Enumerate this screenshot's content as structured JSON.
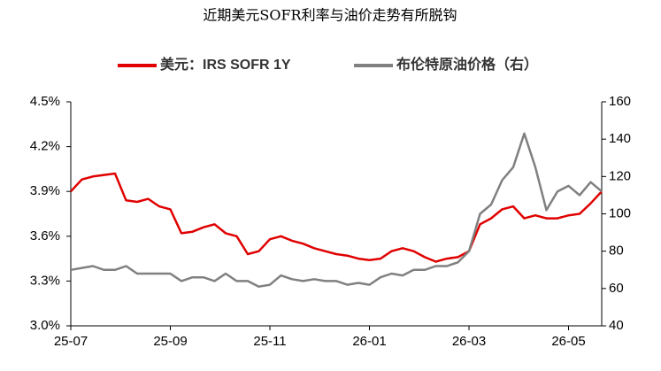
{
  "chart_data": {
    "type": "line",
    "title": "近期美元SOFR利率与油价走势有所脱钩",
    "categories": [
      "25-07",
      null,
      null,
      null,
      null,
      null,
      null,
      null,
      null,
      "25-09",
      null,
      null,
      null,
      null,
      null,
      null,
      null,
      null,
      "25-11",
      null,
      null,
      null,
      null,
      null,
      null,
      null,
      null,
      "26-01",
      null,
      null,
      null,
      null,
      null,
      null,
      null,
      null,
      "26-03",
      null,
      null,
      null,
      null,
      null,
      null,
      null,
      null,
      "26-05",
      null,
      null,
      null
    ],
    "series": [
      {
        "name": "美元：IRS SOFR 1Y",
        "color": "#e00000",
        "values": [
          3.9,
          3.98,
          4.0,
          4.01,
          4.02,
          3.84,
          3.83,
          3.85,
          3.8,
          3.78,
          3.62,
          3.63,
          3.66,
          3.68,
          3.62,
          3.6,
          3.48,
          3.5,
          3.58,
          3.6,
          3.57,
          3.55,
          3.52,
          3.5,
          3.48,
          3.47,
          3.45,
          3.44,
          3.45,
          3.5,
          3.52,
          3.5,
          3.46,
          3.43,
          3.45,
          3.46,
          3.5,
          3.68,
          3.72,
          3.78,
          3.8,
          3.72,
          3.74,
          3.72,
          3.72,
          3.74,
          3.75,
          3.82,
          3.9
        ]
      },
      {
        "name": "布伦特原油价格（右）",
        "color": "#808080",
        "axis": "y2",
        "values": [
          70,
          71,
          72,
          70,
          70,
          72,
          68,
          68,
          68,
          68,
          64,
          66,
          66,
          64,
          68,
          64,
          64,
          61,
          62,
          67,
          65,
          64,
          65,
          64,
          64,
          62,
          63,
          62,
          66,
          68,
          67,
          70,
          70,
          72,
          72,
          74,
          80,
          100,
          105,
          118,
          125,
          143,
          125,
          102,
          112,
          115,
          110,
          117,
          112
        ]
      }
    ],
    "ylim": [
      3.0,
      4.5
    ],
    "yticks": [
      {
        "value": 3.0,
        "label": "3.0%"
      },
      {
        "value": 3.3,
        "label": "3.3%"
      },
      {
        "value": 3.6,
        "label": "3.6%"
      },
      {
        "value": 3.9,
        "label": "3.9%"
      },
      {
        "value": 4.2,
        "label": "4.2%"
      },
      {
        "value": 4.5,
        "label": "4.5%"
      }
    ],
    "y2lim": [
      40,
      160
    ],
    "y2ticks": [
      40,
      60,
      80,
      100,
      120,
      140,
      160
    ],
    "legend": "top",
    "grid": false
  }
}
